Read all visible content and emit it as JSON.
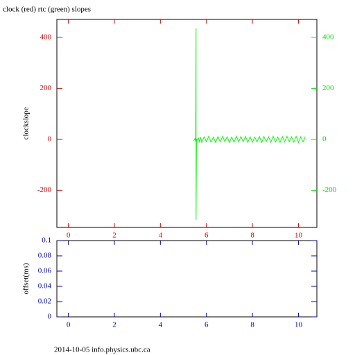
{
  "title": "clock (red) rtc (green) slopes",
  "footer": "2014-10-05 info.physics.ubc.ca",
  "chart_data": [
    {
      "type": "line",
      "ylabel": "clockslope",
      "xlim": [
        -0.5,
        10.8
      ],
      "xticks": [
        0,
        2,
        4,
        6,
        8,
        10
      ],
      "ylim": [
        -345,
        470
      ],
      "yticks": [
        -200,
        0,
        200,
        400
      ],
      "y2lim": [
        -345,
        470
      ],
      "y2ticks": [
        -200,
        0,
        200,
        400
      ],
      "x_axis_color": "#e00000",
      "y_axis_color": "#e00000",
      "y2_axis_color": "#00e000",
      "series": [
        {
          "color": "#00ff00",
          "axis": "y2",
          "x": [
            5.45,
            5.5,
            5.53,
            5.55,
            5.55,
            5.57,
            5.6,
            5.65,
            5.7,
            5.75,
            5.8,
            5.9,
            6.0,
            6.1,
            6.2,
            6.3,
            6.4,
            6.5,
            6.6,
            6.7,
            6.8,
            6.9,
            7.0,
            7.1,
            7.2,
            7.3,
            7.4,
            7.5,
            7.6,
            7.7,
            7.8,
            7.9,
            8.0,
            8.1,
            8.2,
            8.3,
            8.4,
            8.5,
            8.6,
            8.7,
            8.8,
            8.9,
            9.0,
            9.1,
            9.2,
            9.3,
            9.4,
            9.5,
            9.6,
            9.7,
            9.8,
            9.9,
            10.0,
            10.1,
            10.2,
            10.3
          ],
          "values": [
            -5,
            3,
            -8,
            435,
            -315,
            2,
            -4,
            5,
            -10,
            8,
            -12,
            10,
            -9,
            12,
            -11,
            9,
            -12,
            11,
            -10,
            12,
            -8,
            10,
            -12,
            9,
            -11,
            12,
            -10,
            11,
            -9,
            12,
            -12,
            10,
            -11,
            9,
            -10,
            12,
            -12,
            11,
            -9,
            10,
            -11,
            12,
            -10,
            9,
            -12,
            11,
            -10,
            12,
            -9,
            10,
            -11,
            12,
            -12,
            10,
            -10,
            11
          ]
        }
      ]
    },
    {
      "type": "line",
      "ylabel": "offset(ms)",
      "xlim": [
        -0.5,
        10.8
      ],
      "xticks": [
        0,
        2,
        4,
        6,
        8,
        10
      ],
      "ylim": [
        0,
        0.1
      ],
      "yticks": [
        0,
        0.02,
        0.04,
        0.06,
        0.08,
        0.1
      ],
      "x_axis_color": "#0000c0",
      "y_axis_color": "#0000c0"
    }
  ]
}
